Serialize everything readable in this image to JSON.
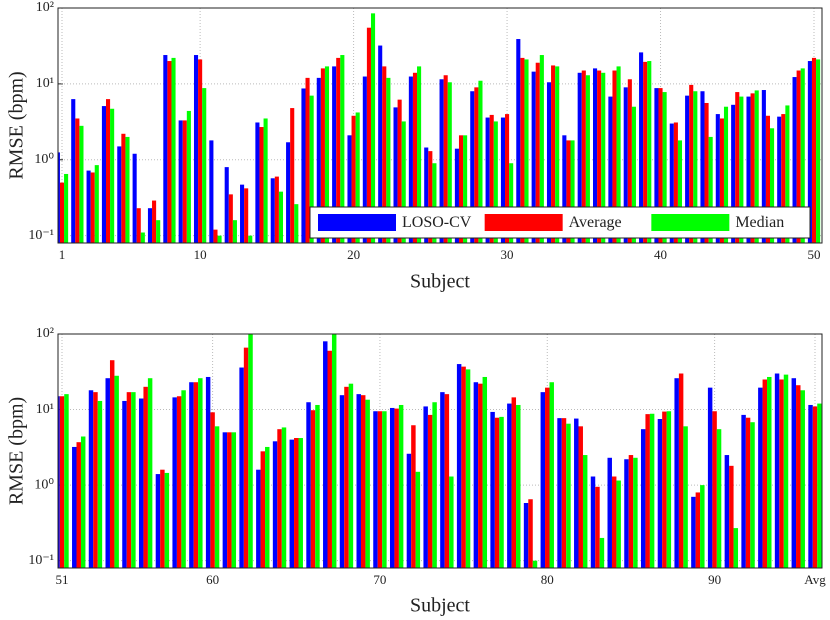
{
  "chart_data": [
    {
      "type": "bar",
      "xlabel": "Subject",
      "ylabel": "RMSE (bpm)",
      "log_scale": true,
      "grid": true,
      "legend": "lower right",
      "categories": [
        "1",
        null,
        null,
        null,
        null,
        null,
        null,
        null,
        null,
        "10",
        null,
        null,
        null,
        null,
        null,
        null,
        null,
        null,
        null,
        "20",
        null,
        null,
        null,
        null,
        null,
        null,
        null,
        null,
        null,
        "30",
        null,
        null,
        null,
        null,
        null,
        null,
        null,
        null,
        null,
        "40",
        null,
        null,
        null,
        null,
        null,
        null,
        null,
        null,
        null,
        "50"
      ],
      "ylim": [
        0.08,
        100
      ],
      "yticks": [
        {
          "value": 0.1,
          "label": "10⁻¹"
        },
        {
          "value": 1,
          "label": "10⁰"
        },
        {
          "value": 10,
          "label": "10¹"
        },
        {
          "value": 100,
          "label": "10²"
        }
      ],
      "series": [
        {
          "name": "LOSO-CV",
          "color": "#0000ff",
          "values": [
            1.25,
            6.3,
            0.72,
            5.1,
            1.5,
            1.2,
            0.23,
            24,
            3.3,
            24,
            1.8,
            0.8,
            0.47,
            3.1,
            0.57,
            1.7,
            8.7,
            12,
            17,
            2.1,
            12.5,
            32,
            4.9,
            12.5,
            1.45,
            11.5,
            1.4,
            8,
            3.6,
            3.6,
            39,
            14.5,
            10.5,
            2.1,
            14,
            16,
            6.8,
            9,
            26,
            8.8,
            3,
            7,
            8,
            4,
            5.3,
            6.8,
            8.3,
            3.7,
            12.3,
            20
          ]
        },
        {
          "name": "Average",
          "color": "#ff0000",
          "values": [
            0.5,
            3.5,
            0.68,
            6.3,
            2.2,
            0.23,
            0.29,
            20,
            3.3,
            21,
            0.12,
            0.35,
            0.42,
            2.7,
            0.6,
            4.8,
            12,
            16,
            22,
            3.8,
            55,
            17,
            6.2,
            14,
            1.3,
            13,
            2.1,
            9,
            3.9,
            4,
            22,
            19,
            17.5,
            1.8,
            15,
            15,
            15,
            11.5,
            19.5,
            8.8,
            3.1,
            9.7,
            5.6,
            3.5,
            7.8,
            7.5,
            3.8,
            4,
            15,
            22
          ]
        },
        {
          "name": "Median",
          "color": "#00ff00",
          "values": [
            0.65,
            2.8,
            0.85,
            4.7,
            2,
            0.11,
            0.16,
            22,
            4.4,
            8.8,
            0.1,
            0.16,
            0.1,
            3.5,
            0.38,
            0.26,
            7,
            17,
            24,
            4.2,
            85,
            12,
            3.2,
            17,
            0.9,
            10.5,
            2.1,
            11,
            3.2,
            0.9,
            21,
            24,
            17,
            1.8,
            13,
            14,
            17,
            5,
            20,
            7.8,
            1.8,
            8,
            2,
            5,
            6.8,
            8.2,
            2.6,
            5.2,
            16,
            21
          ]
        }
      ]
    },
    {
      "type": "bar",
      "xlabel": "Subject",
      "ylabel": "RMSE (bpm)",
      "log_scale": true,
      "grid": true,
      "categories": [
        "51",
        null,
        null,
        null,
        null,
        null,
        null,
        null,
        null,
        "60",
        null,
        null,
        null,
        null,
        null,
        null,
        null,
        null,
        null,
        "70",
        null,
        null,
        null,
        null,
        null,
        null,
        null,
        null,
        null,
        "80",
        null,
        null,
        null,
        null,
        null,
        null,
        null,
        null,
        null,
        "90",
        null,
        null,
        null,
        null,
        null,
        "Avg"
      ],
      "ylim": [
        0.08,
        100
      ],
      "yticks": [
        {
          "value": 0.1,
          "label": "10⁻¹"
        },
        {
          "value": 1,
          "label": "10⁰"
        },
        {
          "value": 10,
          "label": "10¹"
        },
        {
          "value": 100,
          "label": "10²"
        }
      ],
      "series": [
        {
          "color": "#0000ff",
          "values": [
            15,
            3.2,
            18,
            26,
            13,
            14,
            1.4,
            14.5,
            23,
            27,
            5,
            36,
            1.6,
            3.8,
            4,
            12.5,
            80,
            15.5,
            16,
            9.5,
            10.5,
            2.6,
            11,
            17,
            40,
            23,
            9.3,
            12,
            0.58,
            17,
            7.7,
            7.6,
            1.3,
            2.3,
            2.2,
            5.5,
            7.5,
            26,
            0.7,
            19.5,
            2.5,
            8.5,
            19.5,
            30,
            26,
            11.5
          ]
        },
        {
          "color": "#ff0000",
          "values": [
            15,
            3.7,
            17,
            45,
            17,
            20,
            1.6,
            15,
            23,
            9.2,
            5,
            66,
            2.8,
            5.5,
            4.2,
            9.8,
            60,
            20,
            15.5,
            9.5,
            10.3,
            6.2,
            8.5,
            16,
            37,
            22,
            7.8,
            14.5,
            0.65,
            19.5,
            7.7,
            6,
            0.95,
            1.3,
            2.5,
            8.7,
            9.4,
            30,
            0.8,
            9.5,
            1.8,
            7.8,
            25,
            25,
            21,
            11
          ]
        },
        {
          "color": "#00ff00",
          "values": [
            16,
            4.4,
            13,
            28,
            17,
            26,
            1.45,
            18,
            26,
            6,
            5,
            100,
            3.2,
            5.8,
            4.2,
            11.5,
            100,
            22,
            13.5,
            9.5,
            11.5,
            1.5,
            12.5,
            1.3,
            34,
            27,
            8,
            11.5,
            0.1,
            23,
            6.5,
            2.5,
            0.2,
            1.15,
            2.3,
            8.8,
            9.5,
            6,
            1,
            5.5,
            0.27,
            6.8,
            27,
            29,
            18,
            12
          ]
        }
      ]
    }
  ]
}
